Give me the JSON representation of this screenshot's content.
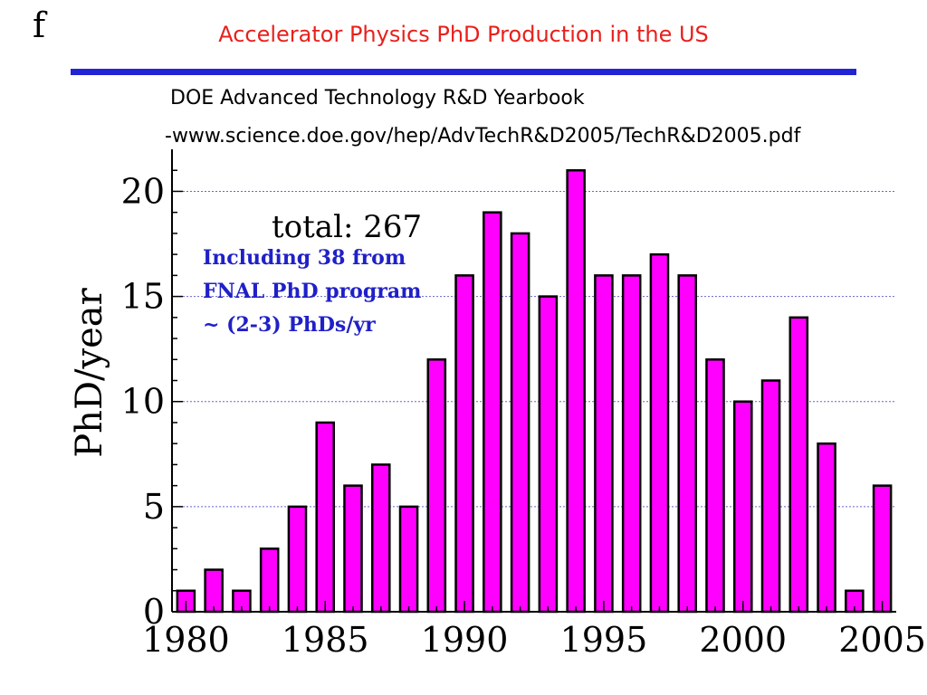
{
  "slide": {
    "corner_glyph": "f",
    "title": "Accelerator Physics PhD Production in the US",
    "source_line1": "DOE Advanced Technology R&D Yearbook",
    "source_line2": "-www.science.doe.gov/hep/AdvTechR&D2005/TechR&D2005.pdf"
  },
  "colors": {
    "title": "#e8201c",
    "rule": "#2323d6",
    "bar_fill": "#ff00ff",
    "bar_stroke": "#000000",
    "grid": "#6666cc",
    "note": "#2020c8"
  },
  "chart_data": {
    "type": "bar",
    "title": "",
    "xlabel": "",
    "ylabel": "PhD/year",
    "x": [
      1980,
      1981,
      1982,
      1983,
      1984,
      1985,
      1986,
      1987,
      1988,
      1989,
      1990,
      1991,
      1992,
      1993,
      1994,
      1995,
      1996,
      1997,
      1998,
      1999,
      2000,
      2001,
      2002,
      2003,
      2004,
      2005
    ],
    "values": [
      1,
      2,
      1,
      3,
      5,
      9,
      6,
      7,
      5,
      12,
      16,
      19,
      18,
      15,
      21,
      16,
      16,
      17,
      16,
      12,
      10,
      11,
      14,
      8,
      1,
      6
    ],
    "xlim": [
      1979.5,
      2005.5
    ],
    "ylim": [
      0,
      22
    ],
    "x_ticks": [
      1980,
      1985,
      1990,
      1995,
      2000,
      2005
    ],
    "y_ticks": [
      0,
      5,
      10,
      15,
      20
    ],
    "grid": "horizontal dotted",
    "annotations": {
      "total": "total: 267",
      "note_lines": [
        "Including 38 from",
        "FNAL PhD program",
        "~ (2-3) PhDs/yr"
      ]
    }
  }
}
